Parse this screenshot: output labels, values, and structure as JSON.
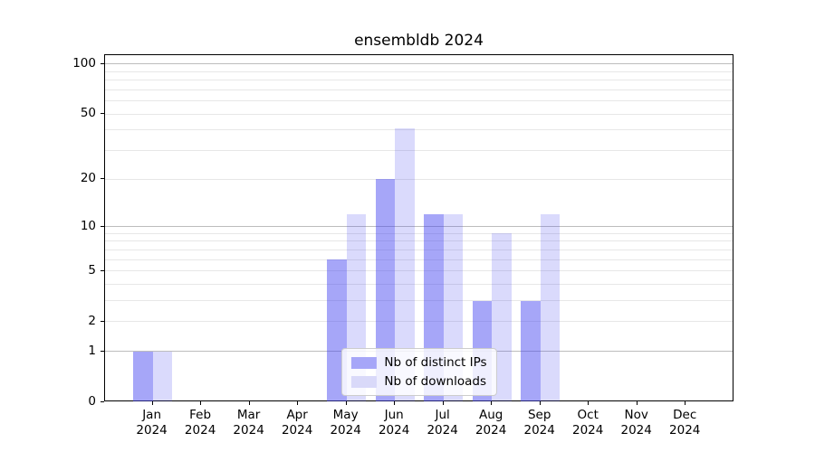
{
  "title": "ensembldb 2024",
  "year": "2024",
  "months": [
    "Jan",
    "Feb",
    "Mar",
    "Apr",
    "May",
    "Jun",
    "Jul",
    "Aug",
    "Sep",
    "Oct",
    "Nov",
    "Dec"
  ],
  "colors": {
    "bar_base": "#4646f0",
    "ips_alpha": 0.48,
    "downloads_alpha": 0.2,
    "ips_flat": "#a6a6f8",
    "downloads_flat": "#d9d9f9",
    "grid_decade": "#bdbdbd",
    "grid_minor": "#e7e7e7",
    "spine": "#000000"
  },
  "legend": {
    "position": "lower center",
    "items": [
      {
        "label": "Nb of distinct IPs",
        "series": 0
      },
      {
        "label": "Nb of downloads",
        "series": 1
      }
    ]
  },
  "chart_data": {
    "type": "bar",
    "title": "ensembldb 2024",
    "categories": [
      "Jan 2024",
      "Feb 2024",
      "Mar 2024",
      "Apr 2024",
      "May 2024",
      "Jun 2024",
      "Jul 2024",
      "Aug 2024",
      "Sep 2024",
      "Oct 2024",
      "Nov 2024",
      "Dec 2024"
    ],
    "series": [
      {
        "name": "Nb of distinct IPs",
        "values": [
          1,
          0,
          0,
          0,
          6,
          20,
          12,
          3,
          3,
          0,
          0,
          0
        ]
      },
      {
        "name": "Nb of downloads",
        "values": [
          1,
          0,
          0,
          0,
          12,
          41,
          12,
          9,
          12,
          0,
          0,
          0
        ]
      }
    ],
    "xlabel": "",
    "ylabel": "",
    "y_scale": "log10(1+y)",
    "y_ticks_labeled": [
      0,
      1,
      2,
      5,
      10,
      20,
      50,
      100
    ],
    "y_ticks_decade": [
      1,
      10,
      100
    ],
    "y_ticks_minor": [
      3,
      4,
      6,
      7,
      8,
      9,
      30,
      40,
      60,
      70,
      80,
      90
    ],
    "ylim": [
      0,
      114
    ],
    "grid": "on",
    "legend_position": "lower center"
  }
}
